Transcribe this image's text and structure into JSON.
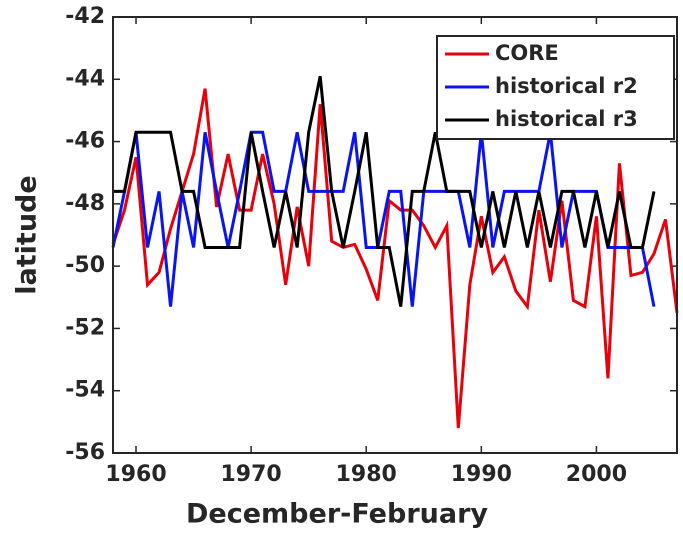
{
  "chart_data": {
    "type": "line",
    "xlabel": "December-February",
    "ylabel": "latitude",
    "x": [
      1958,
      1959,
      1960,
      1961,
      1962,
      1963,
      1964,
      1965,
      1966,
      1967,
      1968,
      1969,
      1970,
      1971,
      1972,
      1973,
      1974,
      1975,
      1976,
      1977,
      1978,
      1979,
      1980,
      1981,
      1982,
      1983,
      1984,
      1985,
      1986,
      1987,
      1988,
      1989,
      1990,
      1991,
      1992,
      1993,
      1994,
      1995,
      1996,
      1997,
      1998,
      1999,
      2000,
      2001,
      2002,
      2003,
      2004,
      2005,
      2006,
      2007
    ],
    "series": [
      {
        "name": "CORE",
        "color": "#e8000b",
        "values": [
          -49.3,
          -48.2,
          -46.5,
          -50.6,
          -50.2,
          -48.8,
          -47.6,
          -46.4,
          -44.3,
          -48.1,
          -46.4,
          -48.2,
          -48.2,
          -46.4,
          -48.0,
          -50.6,
          -48.1,
          -50.0,
          -44.8,
          -49.2,
          -49.4,
          -49.3,
          -50.1,
          -51.1,
          -47.9,
          -48.2,
          -48.2,
          -48.7,
          -49.4,
          -48.7,
          -55.2,
          -50.6,
          -48.4,
          -50.2,
          -49.7,
          -50.8,
          -51.3,
          -48.2,
          -50.5,
          -47.9,
          -51.1,
          -51.3,
          -48.4,
          -53.6,
          -46.7,
          -50.3,
          -50.2,
          -49.6,
          -48.5,
          -51.5
        ]
      },
      {
        "name": "historical r2",
        "color": "#0a14f0",
        "values": [
          -49.4,
          -47.6,
          -45.7,
          -49.4,
          -47.6,
          -51.3,
          -47.6,
          -49.4,
          -45.7,
          -47.6,
          -49.4,
          -47.6,
          -45.7,
          -45.7,
          -47.6,
          -47.6,
          -45.7,
          -47.6,
          -47.6,
          -47.6,
          -47.6,
          -45.7,
          -49.4,
          -49.4,
          -47.6,
          -47.6,
          -51.3,
          -47.6,
          -47.6,
          -47.6,
          -47.6,
          -49.4,
          -45.7,
          -49.4,
          -47.6,
          -47.6,
          -47.6,
          -47.6,
          -45.7,
          -49.4,
          -47.6,
          -47.6,
          -47.6,
          -49.4,
          -49.4,
          -49.4,
          -49.4,
          -51.3,
          null,
          null
        ]
      },
      {
        "name": "historical r3",
        "color": "#000000",
        "values": [
          -47.6,
          -47.6,
          -45.7,
          -45.7,
          -45.7,
          -45.7,
          -47.6,
          -47.6,
          -49.4,
          -49.4,
          -49.4,
          -49.4,
          -45.7,
          -47.6,
          -49.4,
          -47.6,
          -49.4,
          -45.7,
          -43.9,
          -47.6,
          -49.4,
          -47.6,
          -45.7,
          -49.4,
          -49.4,
          -51.3,
          -47.6,
          -47.6,
          -45.7,
          -47.6,
          -47.6,
          -47.6,
          -49.4,
          -47.6,
          -49.4,
          -47.6,
          -49.4,
          -47.6,
          -49.4,
          -47.6,
          -47.6,
          -49.4,
          -47.6,
          -49.4,
          -47.6,
          -49.4,
          -49.4,
          -47.6,
          null,
          null
        ]
      }
    ],
    "xlim": [
      1958,
      2007
    ],
    "xticks": [
      1960,
      1970,
      1980,
      1990,
      2000
    ],
    "ylim": [
      -56,
      -42
    ],
    "yticks": [
      -56,
      -54,
      -52,
      -50,
      -48,
      -46,
      -44,
      -42
    ],
    "legend": "upper right"
  }
}
